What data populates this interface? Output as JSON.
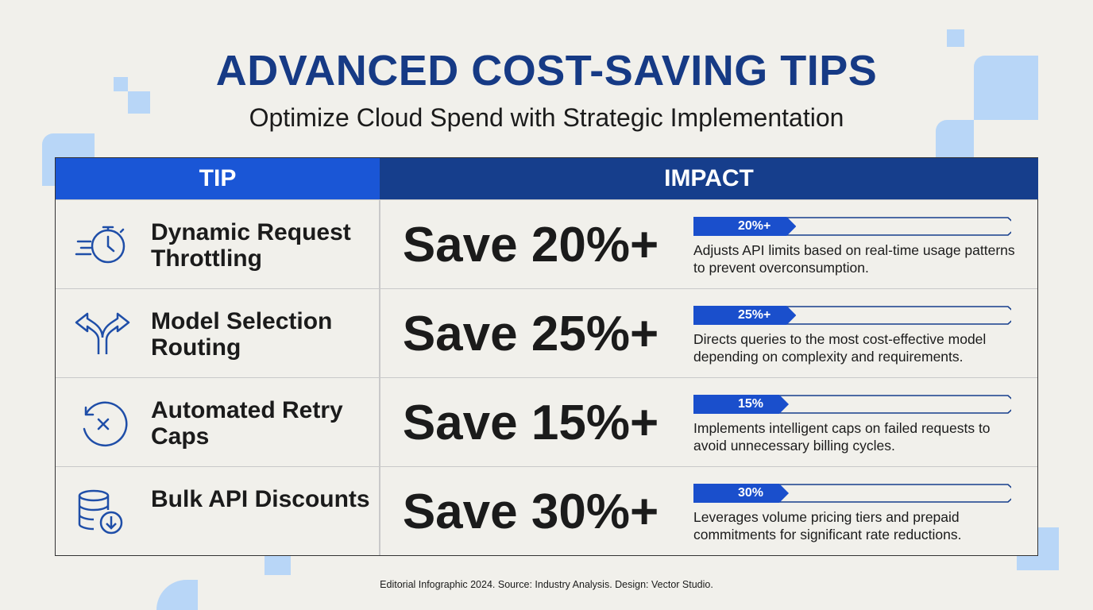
{
  "header": {
    "title": "ADVANCED COST-SAVING TIPS",
    "subtitle": "Optimize Cloud Spend with Strategic Implementation"
  },
  "table": {
    "columns": [
      "TIP",
      "IMPACT"
    ],
    "rows": [
      {
        "tip": "Dynamic Request Throttling",
        "saving": "Save 20%+",
        "badge": "20%+",
        "description": "Adjusts API limits based on real-time usage patterns to prevent overconsumption."
      },
      {
        "tip": "Model Selection Routing",
        "saving": "Save 25%+",
        "badge": "25%+",
        "description": "Directs queries to the most cost-effective model depending on complexity and requirements."
      },
      {
        "tip": "Automated Retry Caps",
        "saving": "Save 15%+",
        "badge": "15%",
        "description": "Implements intelligent caps on failed requests to avoid unnecessary billing cycles."
      },
      {
        "tip": "Bulk API Discounts",
        "saving": "Save 30%+",
        "badge": "30%",
        "description": "Leverages volume pricing tiers and prepaid commitments for significant rate reductions."
      }
    ]
  },
  "footer": "Editorial Infographic 2024. Source: Industry Analysis. Design: Vector Studio."
}
